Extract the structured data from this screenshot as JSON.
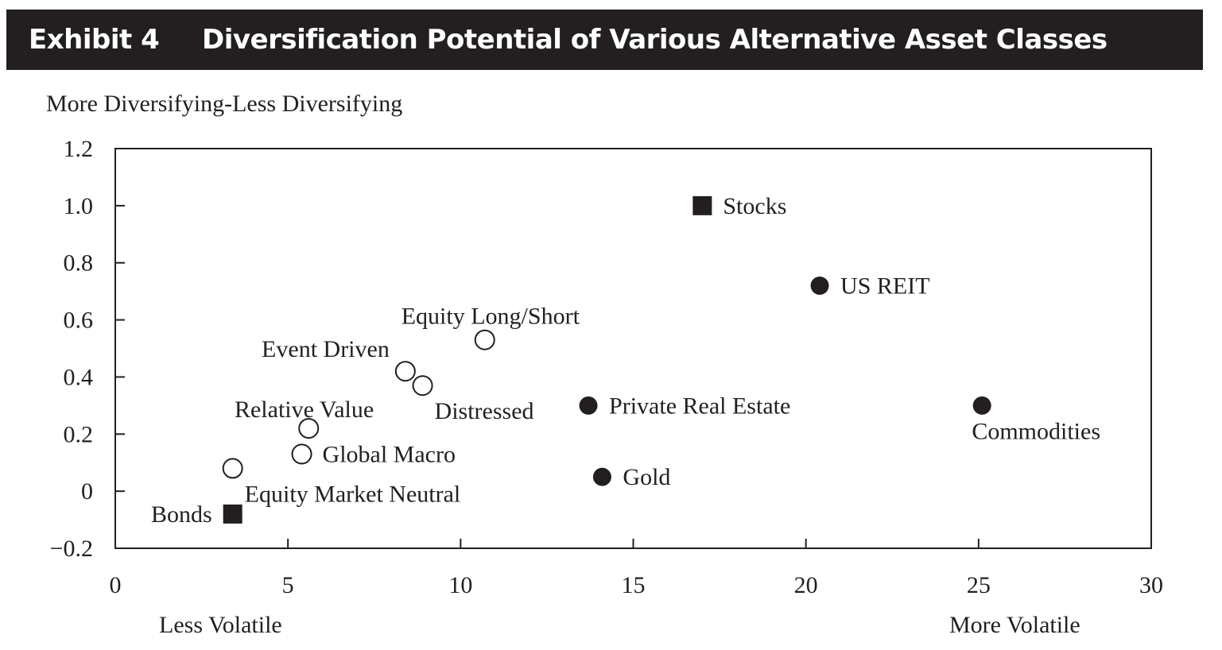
{
  "header": {
    "exhibit": "Exhibit 4",
    "title": "Diversification Potential of Various Alternative Asset Classes"
  },
  "colors": {
    "ink": "#231f20",
    "background": "#ffffff"
  },
  "chart_data": {
    "type": "scatter",
    "title": "Diversification Potential of Various Alternative Asset Classes",
    "ylabel": "More Diversifying-Less Diversifying",
    "xlabel": "",
    "x_left_note": "Less Volatile",
    "x_right_note": "More Volatile",
    "xlim": [
      0,
      30
    ],
    "ylim": [
      -0.2,
      1.2
    ],
    "xticks": [
      0,
      5,
      10,
      15,
      20,
      25,
      30
    ],
    "xtick_labels": [
      "0",
      "5",
      "10",
      "15",
      "20",
      "25",
      "30"
    ],
    "yticks": [
      -0.2,
      0,
      0.2,
      0.4,
      0.6,
      0.8,
      1.0,
      1.2
    ],
    "ytick_labels": [
      "−0.2",
      "0",
      "0.2",
      "0.4",
      "0.6",
      "0.8",
      "1.0",
      "1.2"
    ],
    "grid": false,
    "points": [
      {
        "label": "Stocks",
        "x": 17.0,
        "y": 1.0,
        "marker": "square",
        "label_pos": "right"
      },
      {
        "label": "US REIT",
        "x": 20.4,
        "y": 0.72,
        "marker": "filled-circle",
        "label_pos": "right"
      },
      {
        "label": "Equity Long/Short",
        "x": 10.7,
        "y": 0.53,
        "marker": "open-circle",
        "label_pos": "above"
      },
      {
        "label": "Event Driven",
        "x": 8.4,
        "y": 0.42,
        "marker": "open-circle",
        "label_pos": "upper-left"
      },
      {
        "label": "Distressed",
        "x": 8.9,
        "y": 0.37,
        "marker": "open-circle",
        "label_pos": "lower-right"
      },
      {
        "label": "Private Real Estate",
        "x": 13.7,
        "y": 0.3,
        "marker": "filled-circle",
        "label_pos": "right"
      },
      {
        "label": "Commodities",
        "x": 25.1,
        "y": 0.3,
        "marker": "filled-circle",
        "label_pos": "below"
      },
      {
        "label": "Relative Value",
        "x": 5.6,
        "y": 0.22,
        "marker": "open-circle",
        "label_pos": "upper-left"
      },
      {
        "label": "Global Macro",
        "x": 5.4,
        "y": 0.13,
        "marker": "open-circle",
        "label_pos": "right"
      },
      {
        "label": "Equity Market Neutral",
        "x": 3.4,
        "y": 0.08,
        "marker": "open-circle",
        "label_pos": "lower-right"
      },
      {
        "label": "Gold",
        "x": 14.1,
        "y": 0.05,
        "marker": "filled-circle",
        "label_pos": "right"
      },
      {
        "label": "Bonds",
        "x": 3.4,
        "y": -0.08,
        "marker": "square",
        "label_pos": "left"
      }
    ]
  }
}
